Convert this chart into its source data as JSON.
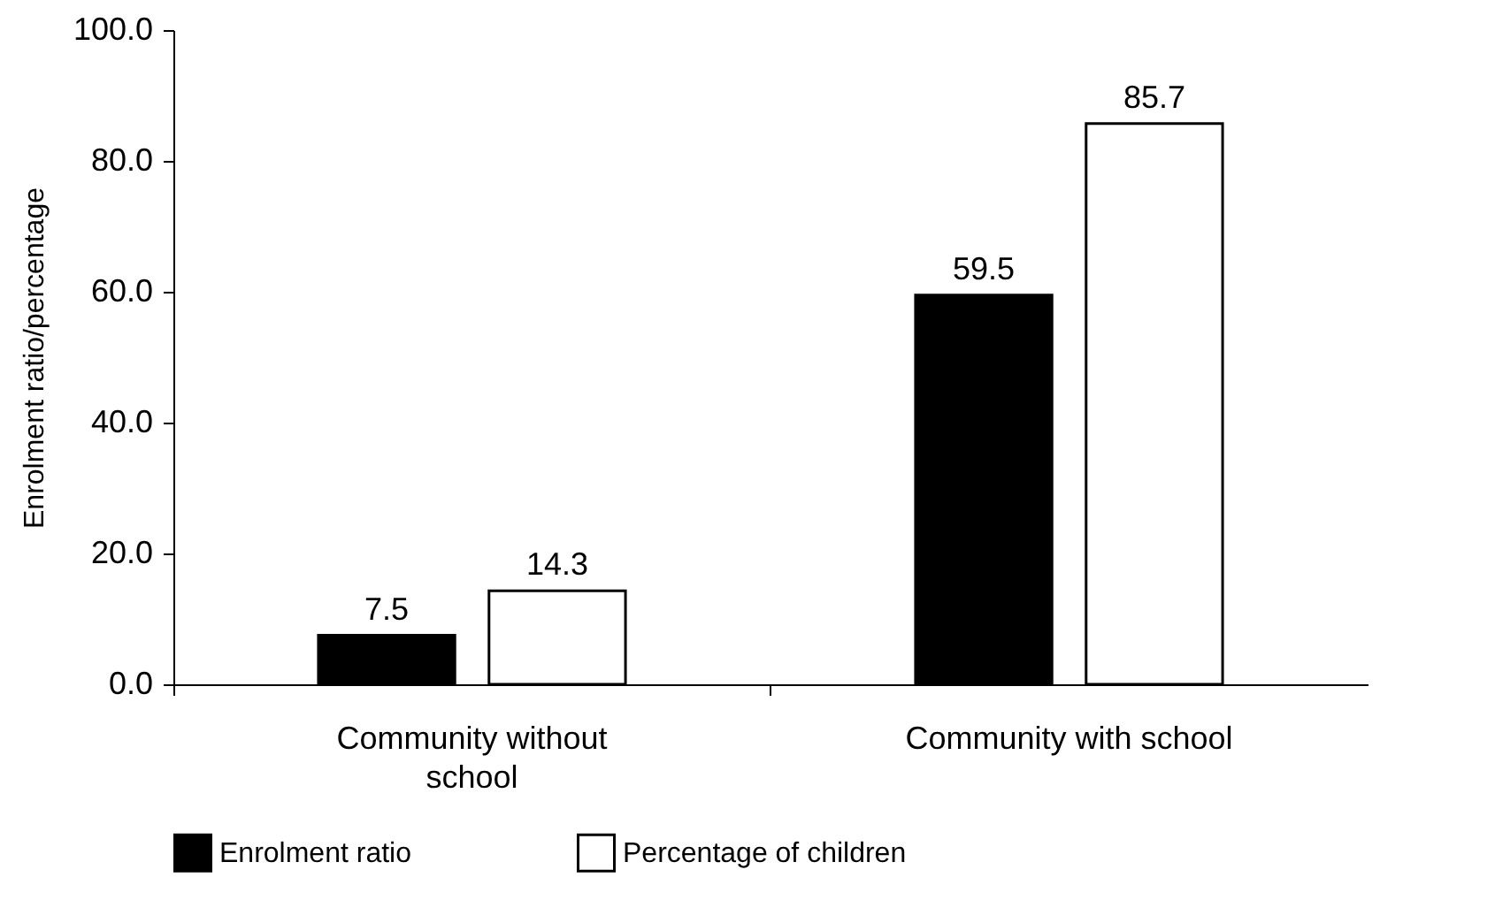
{
  "chart_data": {
    "type": "bar",
    "ylabel": "Enrolment ratio/percentage",
    "categories": [
      "Community without school",
      "Community with school"
    ],
    "series": [
      {
        "name": "Enrolment ratio",
        "color": "#000000",
        "values": [
          7.5,
          59.5
        ]
      },
      {
        "name": "Percentage of children",
        "color": "#ffffff",
        "values": [
          14.3,
          85.7
        ]
      }
    ],
    "ylim": [
      0,
      100
    ],
    "yticks": [
      {
        "value": 0,
        "label": "0.0"
      },
      {
        "value": 20,
        "label": "20.0"
      },
      {
        "value": 40,
        "label": "40.0"
      },
      {
        "value": 60,
        "label": "60.0"
      },
      {
        "value": 80,
        "label": "80.0"
      },
      {
        "value": 100,
        "label": "100.0"
      }
    ],
    "data_labels": true,
    "grid": false,
    "legend": "bottom"
  }
}
